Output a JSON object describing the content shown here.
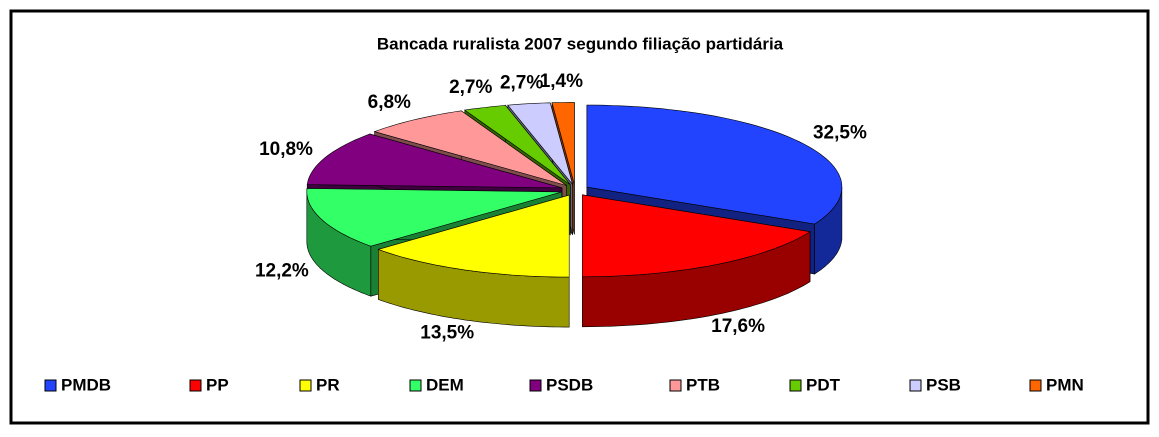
{
  "chart_data": {
    "type": "pie3d",
    "title": "Bancada ruralista 2007 segundo filiação partidária",
    "categories": [
      "PMDB",
      "PP",
      "PR",
      "DEM",
      "PSDB",
      "PTB",
      "PDT",
      "PSB",
      "PMN"
    ],
    "values": [
      32.5,
      17.6,
      13.5,
      12.2,
      10.8,
      6.8,
      2.7,
      2.7,
      1.4
    ],
    "value_labels": [
      "32,5%",
      "17,6%",
      "13,5%",
      "12,2%",
      "10,8%",
      "6,8%",
      "2,7%",
      "2,7%",
      "1,4%"
    ],
    "colors": [
      "#2244ff",
      "#ff0000",
      "#ffff00",
      "#33ff66",
      "#800080",
      "#ff9999",
      "#66cc00",
      "#ccccff",
      "#ff6600"
    ],
    "legend": "bottom"
  }
}
